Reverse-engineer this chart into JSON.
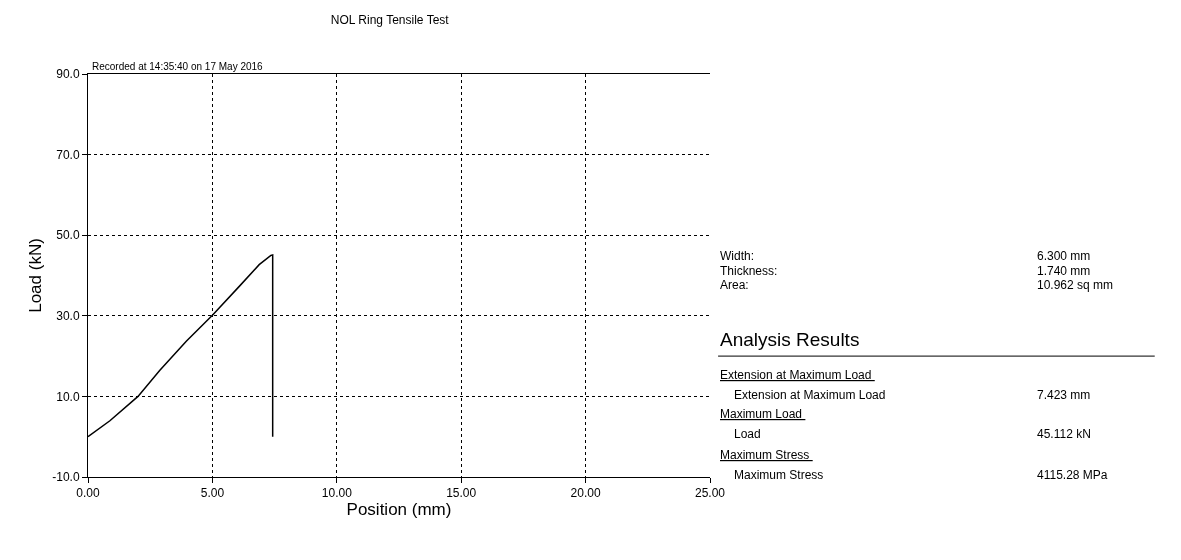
{
  "chart_data": {
    "type": "line",
    "title": "NOL Ring Tensile Test",
    "xlabel": "Position (mm)",
    "ylabel": "Load (kN)",
    "x": [
      0,
      0.88,
      2.01,
      2.88,
      3.95,
      5.01,
      6.08,
      6.88,
      7.35,
      7.423,
      7.423
    ],
    "series": [
      {
        "color": "#000000",
        "values": [
          0,
          3.95,
          10.0,
          16.4,
          23.7,
          30.2,
          37.3,
          42.7,
          45.0,
          45.112,
          0
        ]
      }
    ],
    "xlim": [
      0,
      25
    ],
    "ylim": [
      -10,
      90
    ],
    "xticks": [
      {
        "value": 0,
        "label": "0.00"
      },
      {
        "value": 5,
        "label": "5.00"
      },
      {
        "value": 10,
        "label": "10.00"
      },
      {
        "value": 15,
        "label": "15.00"
      },
      {
        "value": 20,
        "label": "20.00"
      },
      {
        "value": 25,
        "label": "25.00"
      }
    ],
    "yticks": [
      {
        "value": -10,
        "label": "-10.0"
      },
      {
        "value": 10,
        "label": "10.0"
      },
      {
        "value": 30,
        "label": "30.0"
      },
      {
        "value": 50,
        "label": "50.0"
      },
      {
        "value": 70,
        "label": "70.0"
      },
      {
        "value": 90,
        "label": "90.0"
      }
    ],
    "grid": true,
    "marker": "none",
    "line_style": "solid",
    "annotations": [
      "Recorded at 14:35:40 on 17 May 2016",
      "Width:",
      "6.300 mm",
      "Thickness:",
      "1.740 mm",
      "Area:",
      "10.962 sq mm",
      "Analysis Results",
      "Extension at Maximum Load",
      "Extension at Maximum Load",
      "7.423 mm",
      "Maximum Load",
      "Load",
      "45.112 kN",
      "Maximum Stress",
      "Maximum Stress",
      "4115.28 MPa"
    ]
  }
}
